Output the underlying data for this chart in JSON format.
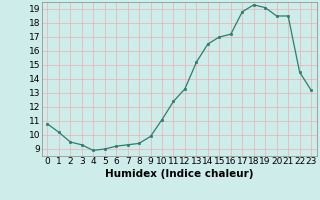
{
  "x": [
    0,
    1,
    2,
    3,
    4,
    5,
    6,
    7,
    8,
    9,
    10,
    11,
    12,
    13,
    14,
    15,
    16,
    17,
    18,
    19,
    20,
    21,
    22,
    23
  ],
  "y": [
    10.8,
    10.2,
    9.5,
    9.3,
    8.9,
    9.0,
    9.2,
    9.3,
    9.4,
    9.9,
    11.1,
    12.4,
    13.3,
    15.2,
    16.5,
    17.0,
    17.2,
    18.8,
    19.3,
    19.1,
    18.5,
    18.5,
    14.5,
    13.2
  ],
  "xlabel": "Humidex (Indice chaleur)",
  "xlim": [
    -0.5,
    23.5
  ],
  "ylim": [
    8.5,
    19.5
  ],
  "yticks": [
    9,
    10,
    11,
    12,
    13,
    14,
    15,
    16,
    17,
    18,
    19
  ],
  "xticks": [
    0,
    1,
    2,
    3,
    4,
    5,
    6,
    7,
    8,
    9,
    10,
    11,
    12,
    13,
    14,
    15,
    16,
    17,
    18,
    19,
    20,
    21,
    22,
    23
  ],
  "line_color": "#2e7d6e",
  "marker_color": "#2e7d6e",
  "bg_color": "#ceecea",
  "grid_color": "#e8b0b0",
  "label_fontsize": 7.5,
  "tick_fontsize": 6.5
}
